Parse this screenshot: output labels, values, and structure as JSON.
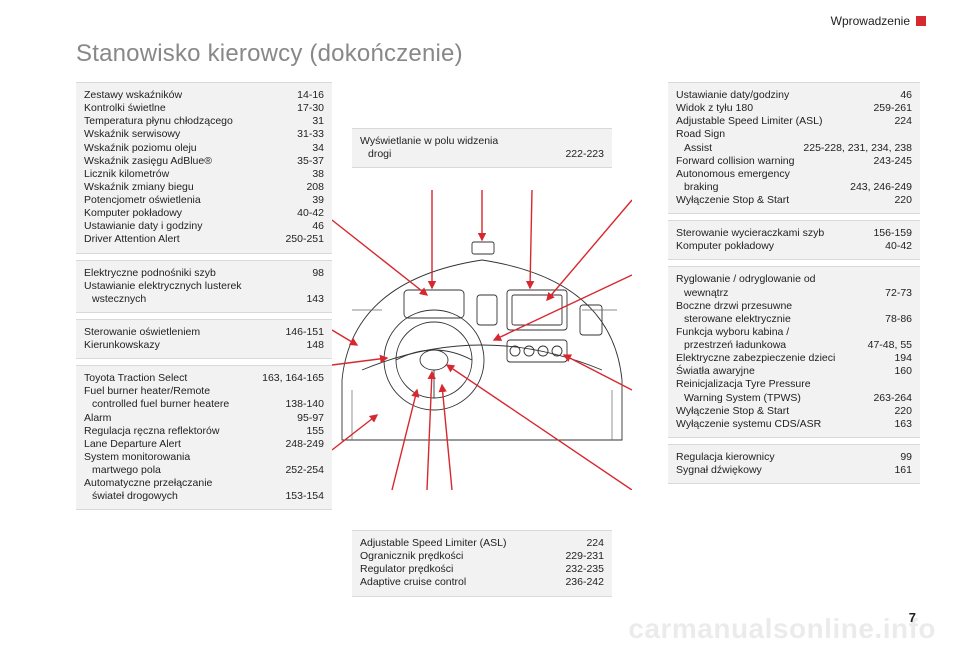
{
  "header": {
    "section": "Wprowadzenie"
  },
  "title": "Stanowisko kierowcy (dokończenie)",
  "page_number": "7",
  "watermark": "carmanualsonline.info",
  "colors": {
    "accent": "#d7282f",
    "group_bg": "#f2f2f2",
    "group_border": "#d9d9d9",
    "text": "#222222",
    "title": "#888888",
    "watermark": "rgba(0,0,0,0.08)"
  },
  "left": [
    {
      "rows": [
        {
          "label": "Zestawy wskaźników",
          "pages": "14-16"
        },
        {
          "label": "Kontrolki świetlne",
          "pages": "17-30"
        },
        {
          "label": "Temperatura płynu chłodzącego",
          "pages": "31"
        },
        {
          "label": "Wskaźnik serwisowy",
          "pages": "31-33"
        },
        {
          "label": "Wskaźnik poziomu oleju",
          "pages": "34"
        },
        {
          "label": "Wskaźnik zasięgu AdBlue®",
          "pages": "35-37"
        },
        {
          "label": "Licznik kilometrów",
          "pages": "38"
        },
        {
          "label": "Wskaźnik zmiany biegu",
          "pages": "208"
        },
        {
          "label": "Potencjometr oświetlenia",
          "pages": "39"
        },
        {
          "label": "Komputer pokładowy",
          "pages": "40-42"
        },
        {
          "label": "Ustawianie daty i godziny",
          "pages": "46"
        },
        {
          "label": "Driver Attention Alert",
          "pages": "250-251"
        }
      ]
    },
    {
      "rows": [
        {
          "label": "Elektryczne podnośniki szyb",
          "pages": "98"
        },
        {
          "label": "Ustawianie elektrycznych lusterek",
          "pages": ""
        },
        {
          "label": "wstecznych",
          "pages": "143",
          "cont": true
        }
      ]
    },
    {
      "rows": [
        {
          "label": "Sterowanie oświetleniem",
          "pages": "146-151"
        },
        {
          "label": "Kierunkowskazy",
          "pages": "148"
        }
      ]
    },
    {
      "rows": [
        {
          "label": "Toyota Traction Select",
          "pages": "163, 164-165"
        },
        {
          "label": "Fuel burner heater/Remote",
          "pages": ""
        },
        {
          "label": "controlled fuel burner heatere",
          "pages": "138-140",
          "cont": true
        },
        {
          "label": "Alarm",
          "pages": "95-97"
        },
        {
          "label": "Regulacja ręczna reflektorów",
          "pages": "155"
        },
        {
          "label": "Lane Departure Alert",
          "pages": "248-249"
        },
        {
          "label": "System monitorowania",
          "pages": ""
        },
        {
          "label": "martwego pola",
          "pages": "252-254",
          "cont": true
        },
        {
          "label": "Automatyczne przełączanie",
          "pages": ""
        },
        {
          "label": "świateł drogowych",
          "pages": "153-154",
          "cont": true
        }
      ]
    }
  ],
  "mid1": {
    "rows": [
      {
        "label": "Wyświetlanie w polu widzenia",
        "pages": ""
      },
      {
        "label": "drogi",
        "pages": "222-223",
        "cont": true
      }
    ]
  },
  "mid2": {
    "rows": [
      {
        "label": "Adjustable Speed Limiter (ASL)",
        "pages": "224"
      },
      {
        "label": "Ogranicznik prędkości",
        "pages": "229-231"
      },
      {
        "label": "Regulator prędkości",
        "pages": "232-235"
      },
      {
        "label": "Adaptive cruise control",
        "pages": "236-242"
      }
    ]
  },
  "right": [
    {
      "rows": [
        {
          "label": "Ustawianie daty/godziny",
          "pages": "46"
        },
        {
          "label": "Widok z tyłu 180",
          "pages": "259-261"
        },
        {
          "label": "Adjustable Speed Limiter (ASL)",
          "pages": "224"
        },
        {
          "label": "Road Sign",
          "pages": ""
        },
        {
          "label": "Assist",
          "pages": "225-228, 231, 234, 238",
          "cont": true
        },
        {
          "label": "Forward collision warning",
          "pages": "243-245"
        },
        {
          "label": "Autonomous emergency",
          "pages": ""
        },
        {
          "label": "braking",
          "pages": "243, 246-249",
          "cont": true
        },
        {
          "label": "Wyłączenie Stop & Start",
          "pages": "220"
        }
      ]
    },
    {
      "rows": [
        {
          "label": "Sterowanie wycieraczkami szyb",
          "pages": "156-159"
        },
        {
          "label": "Komputer pokładowy",
          "pages": "40-42"
        }
      ]
    },
    {
      "rows": [
        {
          "label": "Ryglowanie / odryglowanie od",
          "pages": ""
        },
        {
          "label": "wewnątrz",
          "pages": "72-73",
          "cont": true
        },
        {
          "label": "Boczne drzwi przesuwne",
          "pages": ""
        },
        {
          "label": "sterowane elektrycznie",
          "pages": "78-86",
          "cont": true
        },
        {
          "label": "Funkcja wyboru kabina /",
          "pages": ""
        },
        {
          "label": "przestrzeń ładunkowa",
          "pages": "47-48, 55",
          "cont": true
        },
        {
          "label": "Elektryczne zabezpieczenie dzieci",
          "pages": "194"
        },
        {
          "label": "Światła awaryjne",
          "pages": "160"
        },
        {
          "label": "Reinicjalizacja Tyre Pressure",
          "pages": ""
        },
        {
          "label": "Warning System (TPWS)",
          "pages": "263-264",
          "cont": true
        },
        {
          "label": "Wyłączenie Stop & Start",
          "pages": "220"
        },
        {
          "label": "Wyłączenie systemu CDS/ASR",
          "pages": "163"
        }
      ]
    },
    {
      "rows": [
        {
          "label": "Regulacja kierownicy",
          "pages": "99"
        },
        {
          "label": "Sygnał dźwiękowy",
          "pages": "161"
        }
      ]
    }
  ]
}
